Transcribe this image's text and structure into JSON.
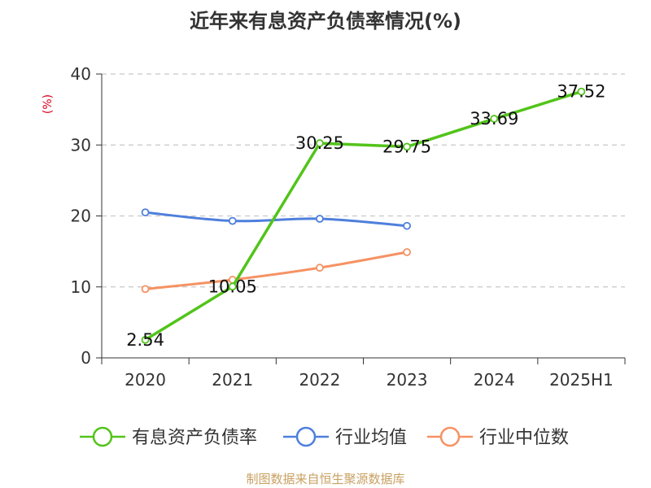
{
  "chart_data": {
    "type": "line",
    "title": "近年来有息资产负债率情况(%)",
    "ylabel": "(%)",
    "xlabel": "",
    "categories": [
      "2020",
      "2021",
      "2022",
      "2023",
      "2024",
      "2025H1"
    ],
    "ylim": [
      0,
      40
    ],
    "yticks": [
      0,
      10,
      20,
      30,
      40
    ],
    "grid": true,
    "legend_position": "bottom",
    "series": [
      {
        "name": "有息资产负债率",
        "color": "#52c41a",
        "values": [
          2.54,
          10.05,
          30.25,
          29.75,
          33.69,
          37.52
        ],
        "labels": [
          "2.54",
          "10.05",
          "30.25",
          "29.75",
          "33.69",
          "37.52"
        ]
      },
      {
        "name": "行业均值",
        "color": "#4e7fdc",
        "values": [
          20.5,
          19.3,
          19.6,
          18.6,
          null,
          null
        ]
      },
      {
        "name": "行业中位数",
        "color": "#f59263",
        "values": [
          9.7,
          11.0,
          12.7,
          14.9,
          null,
          null
        ]
      }
    ]
  },
  "source": "制图数据来自恒生聚源数据库"
}
